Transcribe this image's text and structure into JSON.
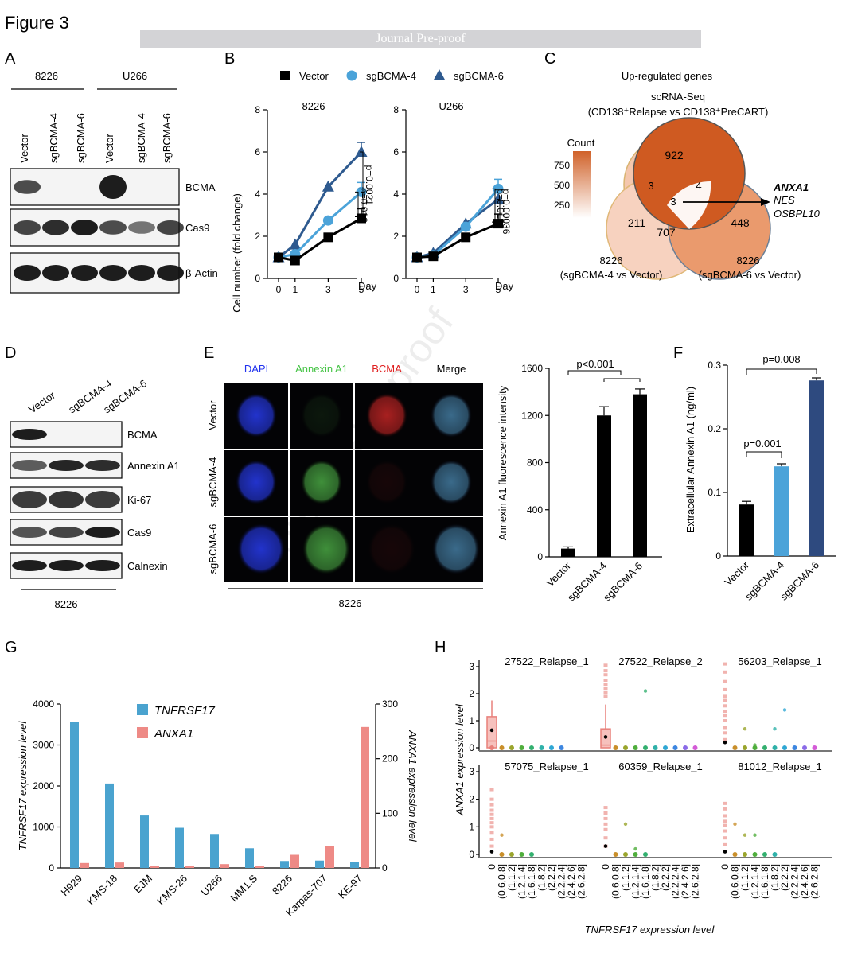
{
  "figure_title": "Figure 3",
  "banner": "Journal Pre-proof",
  "watermark": "Journal Pre-proof",
  "panels": {
    "A": {
      "letter": "A",
      "cell_lines": [
        "8226",
        "U266"
      ],
      "lanes": [
        "Vector",
        "sgBCMA-4",
        "sgBCMA-6",
        "Vector",
        "sgBCMA-4",
        "sgBCMA-6"
      ],
      "blots": [
        "BCMA",
        "Cas9",
        "β-Actin"
      ],
      "bands": [
        [
          0.7,
          0.05,
          0.05,
          1.0,
          0.05,
          0.05
        ],
        [
          0.75,
          0.9,
          1.0,
          0.7,
          0.45,
          0.75
        ],
        [
          1.0,
          1.0,
          1.0,
          1.0,
          1.0,
          1.0
        ]
      ]
    },
    "B": {
      "letter": "B",
      "legend": [
        "Vector",
        "sgBCMA-4",
        "sgBCMA-6"
      ],
      "subplots": [
        {
          "title": "8226",
          "pvals": [
            "p=0.0021",
            "p=0.012"
          ]
        },
        {
          "title": "U266",
          "pvals": [
            "p=0.00036",
            "p=0.019"
          ]
        }
      ],
      "ylabel": "Cell number (fold change)",
      "xlabel": "Day"
    },
    "C": {
      "letter": "C",
      "title": "Up-regulated genes",
      "set_top_1": "scRNA-Seq",
      "set_top_2": "(CD138⁺Relapse vs CD138⁺PreCART)",
      "set_left_1": "8226",
      "set_left_2": "(sgBCMA-4 vs Vector)",
      "set_right_1": "8226",
      "set_right_2": "(sgBCMA-6 vs Vector)",
      "counts": {
        "top": "922",
        "left": "211",
        "right": "448",
        "top_left": "3",
        "top_right": "4",
        "center": "3",
        "left_right": "707"
      },
      "genes": [
        "ANXA1",
        "NES",
        "OSBPL10"
      ],
      "colorbar_title": "Count",
      "colorbar_ticks": [
        "750",
        "500",
        "250"
      ]
    },
    "D": {
      "letter": "D",
      "lanes": [
        "Vector",
        "sgBCMA-4",
        "sgBCMA-6"
      ],
      "blots": [
        "BCMA",
        "Annexin A1",
        "Ki-67",
        "Cas9",
        "Calnexin"
      ],
      "bands": [
        [
          1.0,
          0.03,
          0.03
        ],
        [
          0.6,
          0.95,
          0.9
        ],
        [
          0.8,
          0.85,
          0.8
        ],
        [
          0.65,
          0.75,
          1.0
        ],
        [
          1.0,
          1.0,
          1.0
        ]
      ],
      "cell_line": "8226"
    },
    "E": {
      "letter": "E",
      "columns": [
        "DAPI",
        "Annexin A1",
        "BCMA",
        "Merge"
      ],
      "rows": [
        "Vector",
        "sgBCMA-4",
        "sgBCMA-6"
      ],
      "cell_line": "8226",
      "ylabel": "Annexin A1 fluorescence intensity",
      "pval": "p<0.001"
    },
    "F": {
      "letter": "F",
      "ylabel": "Extracellular Annexin A1 (ng/ml)",
      "pvals": [
        "p=0.008",
        "p=0.001"
      ]
    },
    "G": {
      "letter": "G",
      "legend": [
        "TNFRSF17",
        "ANXA1"
      ],
      "ylabel_left": "TNFRSF17 expression level",
      "ylabel_right": "ANXA1 expression level"
    },
    "H": {
      "letter": "H",
      "facets": [
        "27522_Relapse_1",
        "27522_Relapse_2",
        "56203_Relapse_1",
        "57075_Relapse_1",
        "60359_Relapse_1",
        "81012_Relapse_1"
      ],
      "ylabel": "ANXA1 expression level",
      "xlabel": "TNFRSF17 expression level",
      "bins": [
        "0",
        "(0.6,0.8]",
        "(1,1.2]",
        "(1.2,1.4]",
        "(1.6,1.8]",
        "(1.8,2]",
        "(2,2.2]",
        "(2.2,2.4]",
        "(2.4,2.6]",
        "(2.6,2.8]"
      ],
      "bin_colors": [
        "#e8807a",
        "#c98f2a",
        "#9aa52c",
        "#4fae3c",
        "#33b06f",
        "#2fb1a9",
        "#2fa7d4",
        "#3d86e0",
        "#8b6be8",
        "#d45bd7"
      ],
      "yticks": [
        "0",
        "1",
        "2",
        "3"
      ]
    }
  },
  "chart_data": [
    {
      "type": "line",
      "id": "B-8226",
      "title": "8226",
      "x": [
        0,
        1,
        3,
        5
      ],
      "xlabel": "Day",
      "ylabel": "Cell number (fold change)",
      "ylim": [
        0,
        8
      ],
      "yticks": [
        0,
        2,
        4,
        6,
        8
      ],
      "series": [
        {
          "name": "Vector",
          "values": [
            1.0,
            0.85,
            1.95,
            2.85
          ],
          "color": "#000000",
          "marker": "square"
        },
        {
          "name": "sgBCMA-4",
          "values": [
            1.0,
            1.15,
            2.75,
            4.1
          ],
          "color": "#4ba3d9",
          "marker": "circle"
        },
        {
          "name": "sgBCMA-6",
          "values": [
            1.0,
            1.6,
            4.35,
            6.0
          ],
          "color": "#2e5a8f",
          "marker": "triangle"
        }
      ]
    },
    {
      "type": "line",
      "id": "B-U266",
      "title": "U266",
      "x": [
        0,
        1,
        3,
        5
      ],
      "xlabel": "Day",
      "ylim": [
        0,
        8
      ],
      "yticks": [
        0,
        2,
        4,
        6,
        8
      ],
      "series": [
        {
          "name": "Vector",
          "values": [
            1.0,
            1.05,
            1.95,
            2.6
          ],
          "color": "#000000",
          "marker": "square"
        },
        {
          "name": "sgBCMA-4",
          "values": [
            1.0,
            1.1,
            2.45,
            4.25
          ],
          "color": "#4ba3d9",
          "marker": "circle"
        },
        {
          "name": "sgBCMA-6",
          "values": [
            1.0,
            1.2,
            2.6,
            3.75
          ],
          "color": "#2e5a8f",
          "marker": "triangle"
        }
      ]
    },
    {
      "type": "bar",
      "id": "E-bar",
      "categories": [
        "Vector",
        "sgBCMA-4",
        "sgBCMA-6"
      ],
      "values": [
        70,
        1200,
        1380
      ],
      "errors": [
        15,
        75,
        45
      ],
      "ylabel": "Annexin A1 fluorescence intensity",
      "ylim": [
        0,
        1600
      ],
      "yticks": [
        0,
        400,
        800,
        1200,
        1600
      ],
      "colors": [
        "#000000",
        "#000000",
        "#000000"
      ]
    },
    {
      "type": "bar",
      "id": "F-bar",
      "categories": [
        "Vector",
        "sgBCMA-4",
        "sgBCMA-6"
      ],
      "values": [
        0.081,
        0.141,
        0.276
      ],
      "errors": [
        0.005,
        0.004,
        0.004
      ],
      "ylabel": "Extracellular Annexin A1 (ng/ml)",
      "ylim": [
        0,
        0.3
      ],
      "yticks": [
        0,
        0.1,
        0.2,
        0.3
      ],
      "colors": [
        "#000000",
        "#4ba3d9",
        "#2e4a7f"
      ]
    },
    {
      "type": "bar",
      "id": "G-bar",
      "categories": [
        "H929",
        "KMS-18",
        "EJM",
        "KMS-26",
        "U266",
        "MM1.S",
        "8226",
        "Karpas-707",
        "KE-97"
      ],
      "yticks_left": [
        0,
        1000,
        2000,
        3000,
        4000
      ],
      "ylim_left": [
        0,
        4000
      ],
      "yticks_right": [
        0,
        100,
        200,
        300
      ],
      "ylim_right": [
        0,
        300
      ],
      "series": [
        {
          "name": "TNFRSF17",
          "axis": "left",
          "color": "#4aa3cf",
          "values": [
            3560,
            2060,
            1280,
            980,
            830,
            480,
            170,
            180,
            150
          ]
        },
        {
          "name": "ANXA1",
          "axis": "right",
          "color": "#ee8a86",
          "values": [
            9,
            10,
            3,
            3,
            7,
            3,
            24,
            40,
            258
          ]
        }
      ]
    },
    {
      "type": "scatter",
      "id": "H-facets",
      "ylabel": "ANXA1 expression level",
      "xlabel": "TNFRSF17 expression level",
      "ylim": [
        0,
        3
      ],
      "facets": [
        {
          "name": "27522_Relapse_1",
          "box": {
            "bin": 0,
            "q1": 0,
            "median": 0.25,
            "q3": 1.15,
            "whisker": 1.75,
            "mean": 0.65
          },
          "points": [
            [
              0,
              0
            ],
            [
              1,
              0
            ],
            [
              2,
              0
            ],
            [
              3,
              0
            ],
            [
              4,
              0
            ],
            [
              5,
              0
            ],
            [
              6,
              0
            ],
            [
              7,
              0
            ]
          ]
        },
        {
          "name": "27522_Relapse_2",
          "box": {
            "bin": 0,
            "q1": 0,
            "median": 0.1,
            "q3": 0.7,
            "whisker": 1.6,
            "mean": 0.4
          },
          "outliers": [
            1.9,
            2.05,
            2.2,
            2.35,
            2.5,
            2.7,
            2.85,
            3.05
          ],
          "points": [
            [
              1,
              0
            ],
            [
              2,
              0
            ],
            [
              3,
              0
            ],
            [
              4,
              2.1
            ],
            [
              5,
              0
            ],
            [
              6,
              0
            ],
            [
              7,
              0
            ],
            [
              8,
              0
            ],
            [
              9,
              0
            ]
          ]
        },
        {
          "name": "56203_Relapse_1",
          "box": {
            "bin": 0,
            "q1": 0,
            "median": 0,
            "q3": 0,
            "whisker": 0,
            "mean": 0.2
          },
          "outliers": [
            0.3,
            0.55,
            0.75,
            1.0,
            1.2,
            1.35,
            1.55,
            1.75,
            1.9,
            2.15,
            2.45,
            2.8,
            3.1
          ],
          "points": [
            [
              1,
              0.05
            ],
            [
              2,
              0.7
            ],
            [
              3,
              0.1
            ],
            [
              4,
              0.05
            ],
            [
              5,
              0.7
            ],
            [
              6,
              1.4
            ],
            [
              7,
              0.05
            ],
            [
              8,
              0
            ],
            [
              9,
              0
            ]
          ]
        },
        {
          "name": "57075_Relapse_1",
          "box": {
            "bin": 0,
            "q1": 0,
            "median": 0,
            "q3": 0,
            "whisker": 0,
            "mean": 0.1
          },
          "outliers": [
            0.3,
            0.55,
            0.8,
            1.0,
            1.15,
            1.3,
            1.45,
            1.6,
            1.8,
            2.0,
            2.35
          ],
          "points": [
            [
              1,
              0.7
            ],
            [
              2,
              0
            ],
            [
              3,
              0
            ],
            [
              4,
              0
            ]
          ]
        },
        {
          "name": "60359_Relapse_1",
          "box": {
            "bin": 0,
            "q1": 0,
            "median": 0,
            "q3": 0,
            "whisker": 0,
            "mean": 0.3
          },
          "outliers": [
            0.3,
            0.6,
            0.9,
            1.1,
            1.3,
            1.5,
            1.7
          ],
          "points": [
            [
              1,
              0
            ],
            [
              2,
              1.1
            ],
            [
              3,
              0.2
            ],
            [
              4,
              0
            ]
          ]
        },
        {
          "name": "81012_Relapse_1",
          "box": {
            "bin": 0,
            "q1": 0,
            "median": 0,
            "q3": 0,
            "whisker": 0,
            "mean": 0.1
          },
          "outliers": [
            0.35,
            0.6,
            0.85,
            1.05,
            1.2,
            1.4,
            1.65,
            1.85
          ],
          "points": [
            [
              1,
              1.1
            ],
            [
              2,
              0.7
            ],
            [
              3,
              0.7
            ],
            [
              4,
              0
            ],
            [
              5,
              0
            ]
          ]
        }
      ]
    }
  ]
}
